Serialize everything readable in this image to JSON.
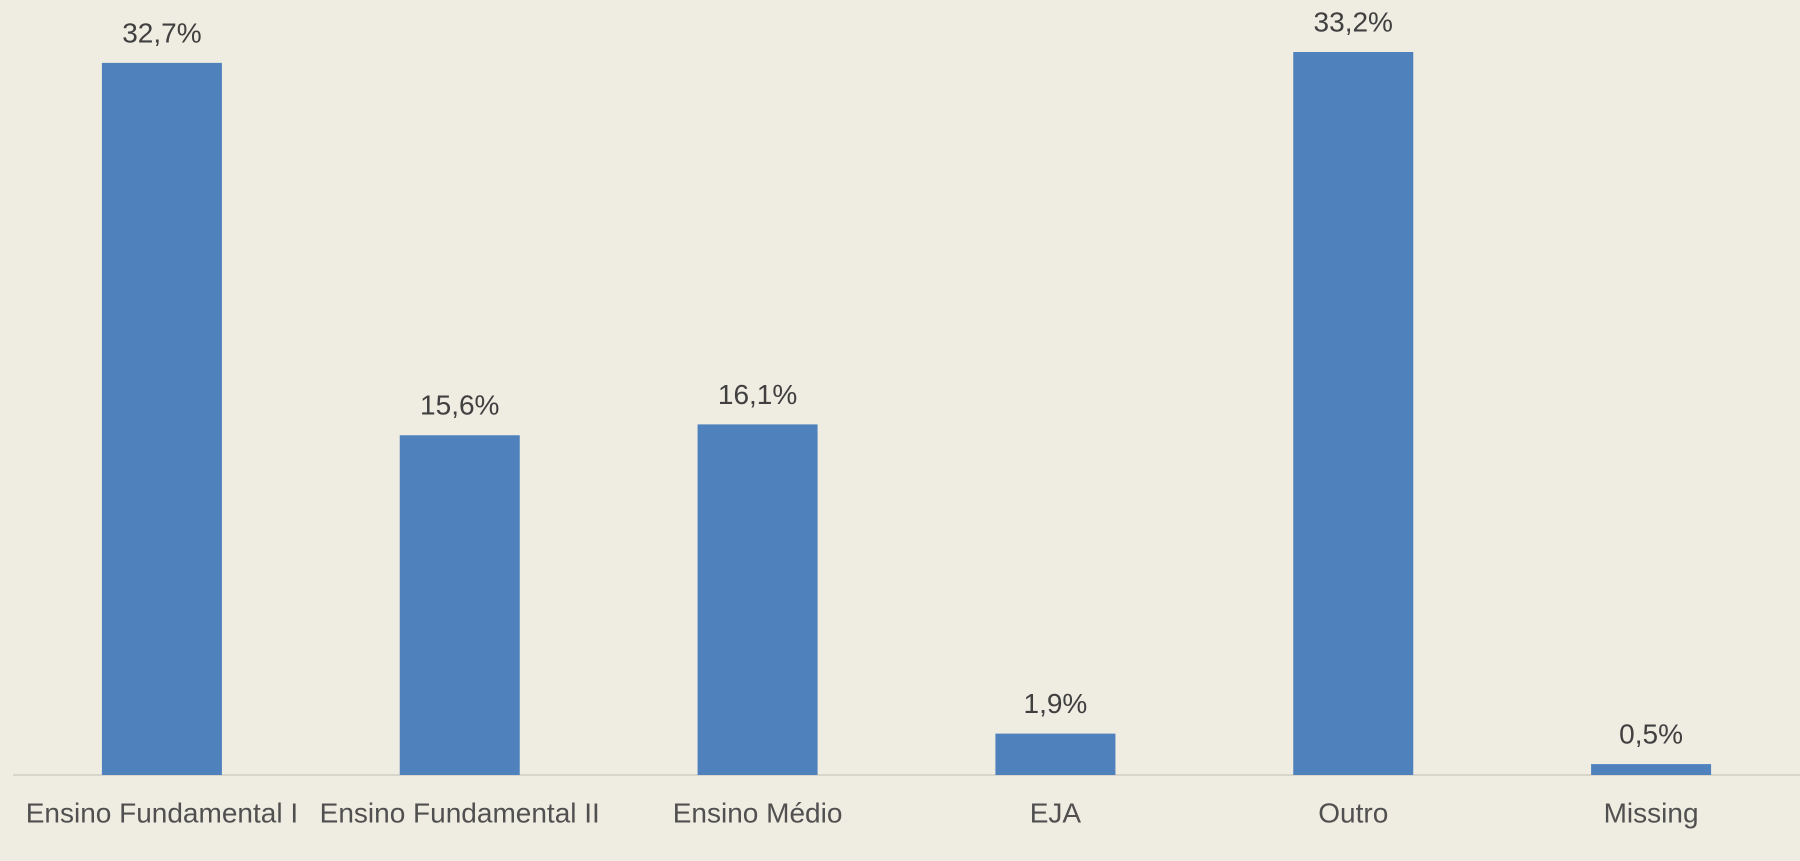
{
  "chart_data": {
    "type": "bar",
    "categories": [
      "Ensino Fundamental I",
      "Ensino Fundamental II",
      "Ensino Médio",
      "EJA",
      "Outro",
      "Missing"
    ],
    "values": [
      32.7,
      15.6,
      16.1,
      1.9,
      33.2,
      0.5
    ],
    "value_labels": [
      "32,7%",
      "15,6%",
      "16,1%",
      "1,9%",
      "33,2%",
      "0,5%"
    ],
    "color": "#4f81bd"
  }
}
